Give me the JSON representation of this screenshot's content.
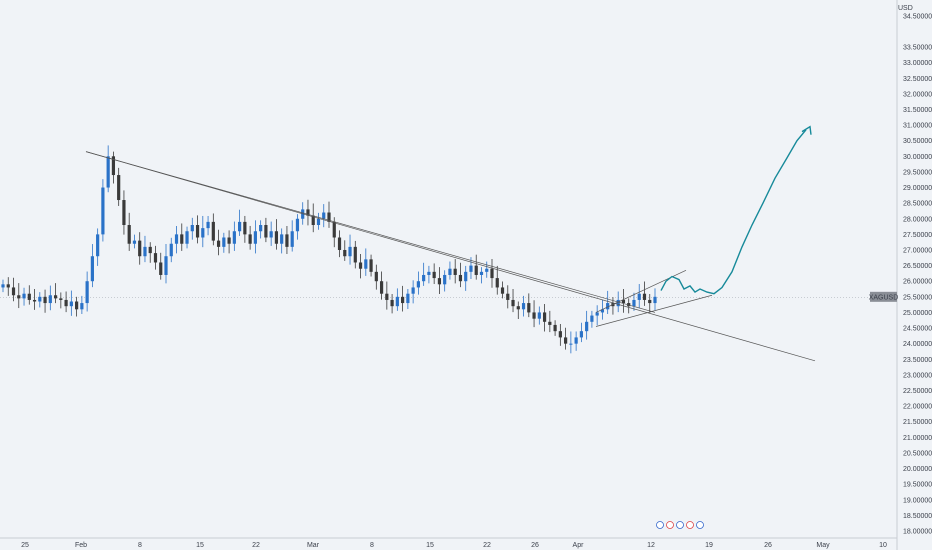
{
  "chart_data": {
    "type": "candlestick",
    "symbol": "XAGUSD",
    "currency": "USD",
    "price_marker": 25.5,
    "up_color": "#2a72c8",
    "down_color": "#3a3a3a",
    "projection_color": "#178a9a",
    "trendline_color": "#555555",
    "y_ticks": [
      "34.50000",
      "33.50000",
      "33.00000",
      "32.50000",
      "32.00000",
      "31.50000",
      "31.00000",
      "30.50000",
      "30.00000",
      "29.50000",
      "29.00000",
      "28.50000",
      "28.00000",
      "27.50000",
      "27.00000",
      "26.50000",
      "26.00000",
      "25.50000",
      "25.00000",
      "24.50000",
      "24.00000",
      "23.50000",
      "23.00000",
      "22.50000",
      "22.00000",
      "21.50000",
      "21.00000",
      "20.50000",
      "20.00000",
      "19.50000",
      "19.00000",
      "18.50000",
      "18.00000"
    ],
    "x_ticks": [
      "25",
      "Feb",
      "8",
      "15",
      "22",
      "Mar",
      "8",
      "15",
      "22",
      "26",
      "Apr",
      "12",
      "19",
      "26",
      "May",
      "10"
    ],
    "x_labels_note": "",
    "series_close": [
      25.9,
      25.8,
      25.55,
      25.45,
      25.6,
      25.4,
      25.35,
      25.5,
      25.3,
      25.55,
      25.45,
      25.4,
      25.2,
      25.35,
      25.1,
      25.3,
      26.0,
      26.8,
      27.5,
      29.0,
      30.0,
      29.4,
      28.6,
      27.8,
      27.2,
      27.3,
      26.8,
      27.1,
      26.9,
      26.6,
      26.2,
      26.8,
      27.2,
      27.5,
      27.2,
      27.6,
      27.8,
      27.4,
      27.7,
      27.9,
      27.3,
      27.1,
      27.4,
      27.2,
      27.6,
      27.9,
      27.5,
      27.2,
      27.6,
      27.8,
      27.4,
      27.6,
      27.2,
      27.5,
      27.1,
      27.6,
      28.0,
      28.3,
      28.1,
      27.8,
      28.0,
      28.2,
      27.9,
      27.4,
      27.0,
      26.8,
      27.1,
      26.6,
      26.4,
      26.7,
      26.3,
      26.0,
      25.6,
      25.4,
      25.2,
      25.5,
      25.3,
      25.6,
      25.8,
      26.0,
      26.2,
      26.3,
      26.1,
      25.9,
      26.2,
      26.4,
      26.2,
      26.0,
      26.3,
      26.5,
      26.2,
      26.3,
      26.4,
      26.1,
      25.8,
      25.6,
      25.4,
      25.2,
      25.1,
      25.3,
      25.0,
      24.8,
      25.0,
      24.7,
      24.6,
      24.4,
      24.2,
      24.0,
      24.0,
      24.2,
      24.4,
      24.7,
      24.9,
      25.0,
      25.1,
      25.3,
      25.2,
      25.4,
      25.3,
      25.2,
      25.4,
      25.6,
      25.4,
      25.3,
      25.5
    ]
  }
}
